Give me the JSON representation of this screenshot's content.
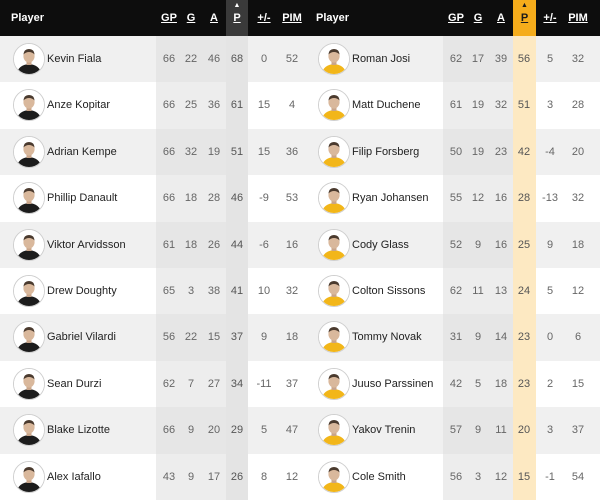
{
  "header": {
    "player_label": "Player",
    "columns": [
      "GP",
      "G",
      "A",
      "P",
      "+/-",
      "PIM"
    ],
    "sorted_column": "P"
  },
  "teams": [
    {
      "colors": {
        "sorted_bg": "#3a3a3a",
        "col_shade": "#e4e4e4",
        "jersey": "#1c1c1c"
      },
      "players": [
        {
          "name": "Kevin Fiala",
          "gp": "66",
          "g": "22",
          "a": "46",
          "p": "68",
          "pm": "0",
          "pim": "52"
        },
        {
          "name": "Anze Kopitar",
          "gp": "66",
          "g": "25",
          "a": "36",
          "p": "61",
          "pm": "15",
          "pim": "4"
        },
        {
          "name": "Adrian Kempe",
          "gp": "66",
          "g": "32",
          "a": "19",
          "p": "51",
          "pm": "15",
          "pim": "36"
        },
        {
          "name": "Phillip Danault",
          "gp": "66",
          "g": "18",
          "a": "28",
          "p": "46",
          "pm": "-9",
          "pim": "53"
        },
        {
          "name": "Viktor Arvidsson",
          "gp": "61",
          "g": "18",
          "a": "26",
          "p": "44",
          "pm": "-6",
          "pim": "16"
        },
        {
          "name": "Drew Doughty",
          "gp": "65",
          "g": "3",
          "a": "38",
          "p": "41",
          "pm": "10",
          "pim": "32"
        },
        {
          "name": "Gabriel Vilardi",
          "gp": "56",
          "g": "22",
          "a": "15",
          "p": "37",
          "pm": "9",
          "pim": "18"
        },
        {
          "name": "Sean Durzi",
          "gp": "62",
          "g": "7",
          "a": "27",
          "p": "34",
          "pm": "-11",
          "pim": "37"
        },
        {
          "name": "Blake Lizotte",
          "gp": "66",
          "g": "9",
          "a": "20",
          "p": "29",
          "pm": "5",
          "pim": "47"
        },
        {
          "name": "Alex Iafallo",
          "gp": "43",
          "g": "9",
          "a": "17",
          "p": "26",
          "pm": "8",
          "pim": "12"
        }
      ]
    },
    {
      "colors": {
        "sorted_bg": "#f5ac1b",
        "col_shade": "#fde9c2",
        "jersey": "#f2b619"
      },
      "players": [
        {
          "name": "Roman Josi",
          "gp": "62",
          "g": "17",
          "a": "39",
          "p": "56",
          "pm": "5",
          "pim": "32"
        },
        {
          "name": "Matt Duchene",
          "gp": "61",
          "g": "19",
          "a": "32",
          "p": "51",
          "pm": "3",
          "pim": "28"
        },
        {
          "name": "Filip Forsberg",
          "gp": "50",
          "g": "19",
          "a": "23",
          "p": "42",
          "pm": "-4",
          "pim": "20"
        },
        {
          "name": "Ryan Johansen",
          "gp": "55",
          "g": "12",
          "a": "16",
          "p": "28",
          "pm": "-13",
          "pim": "32"
        },
        {
          "name": "Cody Glass",
          "gp": "52",
          "g": "9",
          "a": "16",
          "p": "25",
          "pm": "9",
          "pim": "18"
        },
        {
          "name": "Colton Sissons",
          "gp": "62",
          "g": "11",
          "a": "13",
          "p": "24",
          "pm": "5",
          "pim": "12"
        },
        {
          "name": "Tommy Novak",
          "gp": "31",
          "g": "9",
          "a": "14",
          "p": "23",
          "pm": "0",
          "pim": "6"
        },
        {
          "name": "Juuso Parssinen",
          "gp": "42",
          "g": "5",
          "a": "18",
          "p": "23",
          "pm": "2",
          "pim": "15"
        },
        {
          "name": "Yakov Trenin",
          "gp": "57",
          "g": "9",
          "a": "11",
          "p": "20",
          "pm": "3",
          "pim": "37"
        },
        {
          "name": "Cole Smith",
          "gp": "56",
          "g": "3",
          "a": "12",
          "p": "15",
          "pm": "-1",
          "pim": "54"
        }
      ]
    }
  ]
}
